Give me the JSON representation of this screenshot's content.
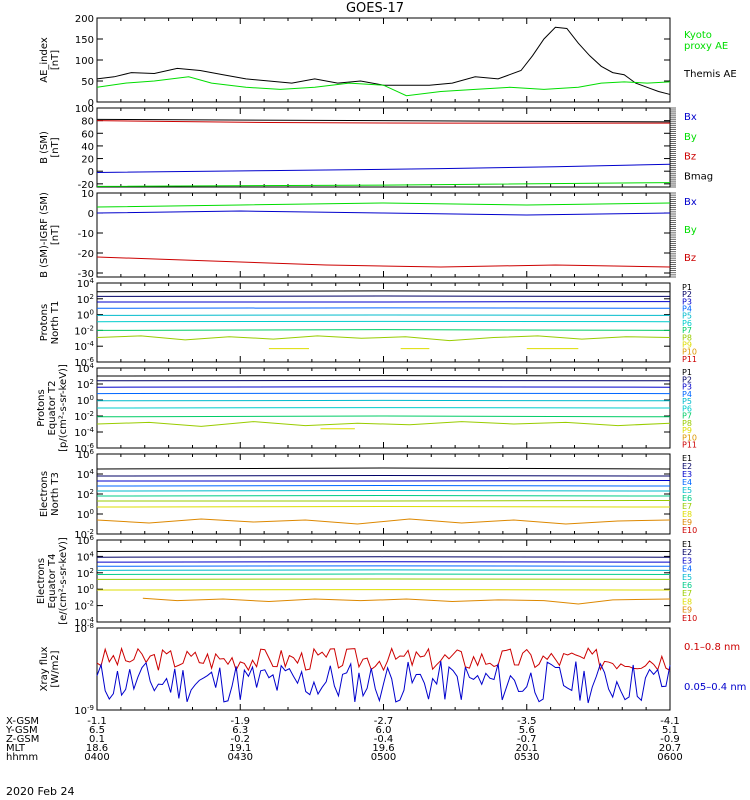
{
  "title": "GOES-17",
  "date": "2020 Feb 24",
  "colors": {
    "black": "#000000",
    "green": "#00dd00",
    "blue": "#0000cc",
    "red": "#cc0000",
    "p_colors": [
      "#000000",
      "#000066",
      "#0000cc",
      "#0066ff",
      "#00bbcc",
      "#00cccc",
      "#00cc66",
      "#99cc00",
      "#dddd00",
      "#dd9900",
      "#cc0000",
      "#990000"
    ],
    "e_colors": [
      "#000000",
      "#000066",
      "#0000cc",
      "#0066ff",
      "#00bbcc",
      "#00cc88",
      "#99cc00",
      "#dddd00",
      "#dd8800",
      "#cc0000",
      "#990000"
    ]
  },
  "ephemeris": {
    "row_labels": [
      "X-GSM",
      "Y-GSM",
      "Z-GSM",
      "MLT",
      "hhmm"
    ],
    "columns": [
      [
        "-1.1",
        "6.5",
        "0.1",
        "18.6",
        "0400"
      ],
      [
        "-1.9",
        "6.3",
        "-0.2",
        "19.1",
        "0430"
      ],
      [
        "-2.7",
        "6.0",
        "-0.4",
        "19.6",
        "0500"
      ],
      [
        "-3.5",
        "5.6",
        "-0.7",
        "20.1",
        "0530"
      ],
      [
        "-4.1",
        "5.1",
        "-0.9",
        "20.7",
        "0600"
      ]
    ]
  },
  "chart_data": [
    {
      "type": "line",
      "ylabel": "AE_index [nT]",
      "ylim": [
        0,
        200
      ],
      "yticks": [
        "0",
        "50",
        "100",
        "150",
        "200"
      ],
      "legend": [
        {
          "name": "Kyoto proxy AE",
          "lines": [
            "Kyoto",
            "proxy AE"
          ],
          "color": "#00dd00"
        },
        {
          "name": "Themis AE",
          "lines": [
            "Themis AE"
          ],
          "color": "#000000"
        }
      ],
      "series": [
        {
          "name": "Themis AE",
          "color": "#000000",
          "x": [
            0,
            3,
            6,
            10,
            14,
            18,
            22,
            26,
            30,
            34,
            38,
            42,
            46,
            50,
            54,
            58,
            62,
            66,
            70,
            74,
            76,
            78,
            80,
            82,
            84,
            86,
            88,
            90,
            92,
            94,
            96,
            98,
            100
          ],
          "values": [
            55,
            60,
            70,
            68,
            80,
            75,
            65,
            55,
            50,
            45,
            55,
            45,
            50,
            40,
            40,
            40,
            45,
            60,
            55,
            75,
            110,
            150,
            178,
            175,
            140,
            110,
            85,
            70,
            65,
            45,
            35,
            25,
            18
          ]
        },
        {
          "name": "Kyoto proxy AE",
          "color": "#00dd00",
          "x": [
            0,
            5,
            10,
            16,
            20,
            26,
            32,
            38,
            44,
            50,
            54,
            60,
            66,
            72,
            78,
            84,
            88,
            92,
            96,
            100
          ],
          "values": [
            35,
            45,
            50,
            60,
            45,
            35,
            30,
            35,
            45,
            40,
            15,
            25,
            30,
            35,
            30,
            35,
            45,
            48,
            45,
            48
          ]
        }
      ]
    },
    {
      "type": "line",
      "ylabel": "B (SM) [nT]",
      "ylim": [
        -25,
        100
      ],
      "yticks": [
        "-20",
        "0",
        "20",
        "40",
        "60",
        "80",
        "100"
      ],
      "legend": [
        {
          "name": "Bx",
          "lines": [
            "Bx"
          ],
          "color": "#0000cc"
        },
        {
          "name": "By",
          "lines": [
            "By"
          ],
          "color": "#00dd00"
        },
        {
          "name": "Bz",
          "lines": [
            "Bz"
          ],
          "color": "#cc0000"
        },
        {
          "name": "Bmag",
          "lines": [
            "Bmag"
          ],
          "color": "#000000"
        }
      ],
      "series": [
        {
          "name": "Bmag",
          "color": "#000000",
          "x": [
            0,
            100
          ],
          "values": [
            82,
            78
          ]
        },
        {
          "name": "Bz",
          "color": "#cc0000",
          "x": [
            0,
            30,
            60,
            100
          ],
          "values": [
            80,
            77,
            76,
            76
          ]
        },
        {
          "name": "Bx",
          "color": "#0000cc",
          "x": [
            0,
            30,
            60,
            80,
            100
          ],
          "values": [
            -2,
            1,
            4,
            7,
            11
          ]
        },
        {
          "name": "By",
          "color": "#00dd00",
          "x": [
            0,
            50,
            100
          ],
          "values": [
            -24,
            -22,
            -18
          ]
        }
      ]
    },
    {
      "type": "line",
      "ylabel": "B (SM)-IGRF (SM) [nT]",
      "ylim": [
        -32,
        10
      ],
      "yticks": [
        "-30",
        "-20",
        "-10",
        "0",
        "10"
      ],
      "legend": [
        {
          "name": "Bx",
          "lines": [
            "Bx"
          ],
          "color": "#0000cc"
        },
        {
          "name": "By",
          "lines": [
            "By"
          ],
          "color": "#00dd00"
        },
        {
          "name": "Bz",
          "lines": [
            "Bz"
          ],
          "color": "#cc0000"
        }
      ],
      "series": [
        {
          "name": "By",
          "color": "#00dd00",
          "x": [
            0,
            25,
            50,
            75,
            100
          ],
          "values": [
            3,
            4,
            5,
            4,
            5
          ]
        },
        {
          "name": "Bx",
          "color": "#0000cc",
          "x": [
            0,
            25,
            50,
            75,
            100
          ],
          "values": [
            0,
            1,
            0,
            -1,
            0
          ]
        },
        {
          "name": "Bz",
          "color": "#cc0000",
          "x": [
            0,
            20,
            40,
            60,
            80,
            100
          ],
          "values": [
            -22,
            -24,
            -26,
            -27,
            -26,
            -27
          ]
        }
      ]
    },
    {
      "type": "line",
      "ylabel": "Protons North T1",
      "log": true,
      "ylim": [
        -6,
        4
      ],
      "yticks": [
        "10^4",
        "10^2",
        "10^0",
        "10^-2",
        "10^-4",
        "10^-6"
      ],
      "legend_style": "p",
      "legend": [
        {
          "name": "P1",
          "lines": [
            "P1"
          ]
        },
        {
          "name": "P2",
          "lines": [
            "P2"
          ]
        },
        {
          "name": "P3",
          "lines": [
            "P3"
          ]
        },
        {
          "name": "P4",
          "lines": [
            "P4"
          ]
        },
        {
          "name": "P5",
          "lines": [
            "P5"
          ]
        },
        {
          "name": "P6",
          "lines": [
            "P6"
          ]
        },
        {
          "name": "P7",
          "lines": [
            "P7"
          ]
        },
        {
          "name": "P8",
          "lines": [
            "P8"
          ]
        },
        {
          "name": "P9",
          "lines": [
            "P9"
          ]
        },
        {
          "name": "P10",
          "lines": [
            "P10"
          ]
        },
        {
          "name": "P11",
          "lines": [
            "P11"
          ]
        }
      ],
      "series": [
        {
          "name": "P1",
          "values_log": [
            2.9,
            3.0,
            2.9
          ]
        },
        {
          "name": "P2",
          "values_log": [
            2.3,
            2.35,
            2.3
          ]
        },
        {
          "name": "P3",
          "values_log": [
            1.6,
            1.6,
            1.65
          ]
        },
        {
          "name": "P4",
          "values_log": [
            0.8,
            0.85,
            0.8
          ]
        },
        {
          "name": "P5",
          "values_log": [
            -0.1,
            -0.05,
            -0.1
          ]
        },
        {
          "name": "P6",
          "values_log": [
            -0.9,
            -0.85,
            -0.9
          ]
        },
        {
          "name": "P7",
          "values_log": [
            -2.0,
            -1.9,
            -2.0
          ]
        },
        {
          "name": "P8",
          "values_log": [
            -2.9,
            -2.7,
            -3.2,
            -2.8,
            -3.1,
            -2.7,
            -3.0,
            -2.8,
            -3.3,
            -2.9,
            -2.7,
            -3.1,
            -2.8,
            -2.9
          ]
        },
        {
          "name": "P9",
          "segments": [
            [
              30,
              37,
              -4.3
            ],
            [
              53,
              58,
              -4.3
            ],
            [
              75,
              84,
              -4.3
            ]
          ]
        }
      ]
    },
    {
      "type": "line",
      "ylabel": "Protons Equator T2 [p/(cm²-s-sr-keV)]",
      "log": true,
      "ylim": [
        -6,
        4
      ],
      "yticks": [
        "10^4",
        "10^2",
        "10^0",
        "10^-2",
        "10^-4",
        "10^-6"
      ],
      "legend_style": "p",
      "legend": [
        {
          "name": "P1",
          "lines": [
            "P1"
          ]
        },
        {
          "name": "P2",
          "lines": [
            "P2"
          ]
        },
        {
          "name": "P3",
          "lines": [
            "P3"
          ]
        },
        {
          "name": "P4",
          "lines": [
            "P4"
          ]
        },
        {
          "name": "P5",
          "lines": [
            "P5"
          ]
        },
        {
          "name": "P6",
          "lines": [
            "P6"
          ]
        },
        {
          "name": "P7",
          "lines": [
            "P7"
          ]
        },
        {
          "name": "P8",
          "lines": [
            "P8"
          ]
        },
        {
          "name": "P9",
          "lines": [
            "P9"
          ]
        },
        {
          "name": "P10",
          "lines": [
            "P10"
          ]
        },
        {
          "name": "P11",
          "lines": [
            "P11"
          ]
        }
      ],
      "series": [
        {
          "name": "P1",
          "values_log": [
            3.0,
            3.05,
            3.0
          ]
        },
        {
          "name": "P2",
          "values_log": [
            2.4,
            2.45,
            2.4
          ]
        },
        {
          "name": "P3",
          "values_log": [
            1.6,
            1.65,
            1.6
          ]
        },
        {
          "name": "P4",
          "values_log": [
            0.8,
            0.85,
            0.8
          ]
        },
        {
          "name": "P5",
          "values_log": [
            -0.1,
            -0.05,
            -0.1
          ]
        },
        {
          "name": "P6",
          "values_log": [
            -1.0,
            -0.95,
            -1.0
          ]
        },
        {
          "name": "P7",
          "values_log": [
            -2.1,
            -2.0,
            -2.1
          ]
        },
        {
          "name": "P8",
          "values_log": [
            -3.0,
            -2.8,
            -3.3,
            -2.7,
            -3.2,
            -2.9,
            -3.1,
            -2.7,
            -3.0,
            -2.8,
            -3.2,
            -2.9
          ]
        },
        {
          "name": "P9",
          "segments": [
            [
              39,
              45,
              -3.6
            ]
          ]
        }
      ]
    },
    {
      "type": "line",
      "ylabel": "Electrons North T3",
      "log": true,
      "ylim": [
        -2,
        6
      ],
      "yticks": [
        "10^6",
        "10^4",
        "10^2",
        "10^0",
        "10^-2"
      ],
      "legend_style": "e",
      "legend": [
        {
          "name": "E1",
          "lines": [
            "E1"
          ]
        },
        {
          "name": "E2",
          "lines": [
            "E2"
          ]
        },
        {
          "name": "E3",
          "lines": [
            "E3"
          ]
        },
        {
          "name": "E4",
          "lines": [
            "E4"
          ]
        },
        {
          "name": "E5",
          "lines": [
            "E5"
          ]
        },
        {
          "name": "E6",
          "lines": [
            "E6"
          ]
        },
        {
          "name": "E7",
          "lines": [
            "E7"
          ]
        },
        {
          "name": "E8",
          "lines": [
            "E8"
          ]
        },
        {
          "name": "E9",
          "lines": [
            "E9"
          ]
        },
        {
          "name": "E10",
          "lines": [
            "E10"
          ]
        }
      ],
      "series": [
        {
          "name": "E1",
          "values_log": [
            4.5,
            4.6,
            4.5
          ]
        },
        {
          "name": "E2",
          "values_log": [
            3.8,
            3.85,
            3.8
          ]
        },
        {
          "name": "E3",
          "values_log": [
            3.3,
            3.3,
            3.35
          ]
        },
        {
          "name": "E4",
          "values_log": [
            2.8,
            2.85,
            2.8
          ]
        },
        {
          "name": "E5",
          "values_log": [
            2.3,
            2.35,
            2.3
          ]
        },
        {
          "name": "E6",
          "values_log": [
            1.8,
            1.85,
            1.8
          ]
        },
        {
          "name": "E7",
          "values_log": [
            1.3,
            1.3,
            1.35
          ]
        },
        {
          "name": "E8",
          "values_log": [
            0.7,
            0.75,
            0.7
          ]
        },
        {
          "name": "E9",
          "values_log": [
            -0.6,
            -0.9,
            -0.5,
            -0.8,
            -0.6,
            -1.0,
            -0.5,
            -0.9,
            -0.6,
            -1.0,
            -0.7,
            -0.6
          ]
        }
      ]
    },
    {
      "type": "line",
      "ylabel": "Electrons Equator T4 [e/(cm²-s-sr-keV)]",
      "log": true,
      "ylim": [
        -4,
        6
      ],
      "yticks": [
        "10^6",
        "10^4",
        "10^2",
        "10^0",
        "10^-2",
        "10^-4"
      ],
      "legend_style": "e",
      "legend": [
        {
          "name": "E1",
          "lines": [
            "E1"
          ]
        },
        {
          "name": "E2",
          "lines": [
            "E2"
          ]
        },
        {
          "name": "E3",
          "lines": [
            "E3"
          ]
        },
        {
          "name": "E4",
          "lines": [
            "E4"
          ]
        },
        {
          "name": "E5",
          "lines": [
            "E5"
          ]
        },
        {
          "name": "E6",
          "lines": [
            "E6"
          ]
        },
        {
          "name": "E7",
          "lines": [
            "E7"
          ]
        },
        {
          "name": "E8",
          "lines": [
            "E8"
          ]
        },
        {
          "name": "E9",
          "lines": [
            "E9"
          ]
        },
        {
          "name": "E10",
          "lines": [
            "E10"
          ]
        }
      ],
      "series": [
        {
          "name": "E1",
          "values_log": [
            4.6,
            4.65,
            4.6
          ]
        },
        {
          "name": "E2",
          "values_log": [
            3.9,
            3.95,
            3.9
          ]
        },
        {
          "name": "E3",
          "values_log": [
            3.3,
            3.35,
            3.3
          ]
        },
        {
          "name": "E4",
          "values_log": [
            2.8,
            2.85,
            2.8
          ]
        },
        {
          "name": "E5",
          "values_log": [
            2.3,
            2.35,
            2.3
          ]
        },
        {
          "name": "E6",
          "values_log": [
            1.8,
            1.85,
            1.8
          ]
        },
        {
          "name": "E7",
          "values_log": [
            1.2,
            1.25,
            1.2
          ]
        },
        {
          "name": "E8",
          "values_log": [
            -0.1,
            -0.05,
            -0.1
          ]
        },
        {
          "name": "E9",
          "x": [
            8,
            14,
            22,
            30,
            38,
            46,
            54,
            62,
            70,
            78,
            84,
            90,
            100
          ],
          "values_log": [
            -1.1,
            -1.4,
            -1.2,
            -1.5,
            -1.2,
            -1.4,
            -1.2,
            -1.5,
            -1.3,
            -1.4,
            -1.8,
            -1.3,
            -1.2
          ]
        }
      ]
    },
    {
      "type": "line",
      "ylabel": "Xray flux [W/m2]",
      "log": true,
      "ylim": [
        -9,
        -8
      ],
      "yticks": [
        "10^-8",
        "10^-9"
      ],
      "legend": [
        {
          "name": "0.1-0.8 nm",
          "lines": [
            "0.1–0.8 nm"
          ],
          "color": "#cc0000"
        },
        {
          "name": "0.05-0.4 nm",
          "lines": [
            "0.05–0.4 nm"
          ],
          "color": "#0000cc"
        }
      ],
      "series": [
        {
          "name": "0.1-0.8 nm",
          "color": "#cc0000",
          "noise_seed": 3,
          "center": -8.38,
          "amp": 0.14
        },
        {
          "name": "0.05-0.4 nm",
          "color": "#0000cc",
          "noise_seed": 11,
          "center": -8.66,
          "amp": 0.26
        }
      ]
    }
  ]
}
